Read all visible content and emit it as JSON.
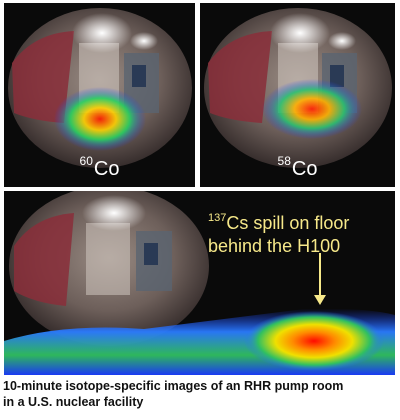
{
  "panels": [
    {
      "isotope_mass": "60",
      "isotope_symbol": "Co"
    },
    {
      "isotope_mass": "58",
      "isotope_symbol": "Co"
    }
  ],
  "annotation": {
    "mass": "137",
    "line1_rest": "Cs spill on floor",
    "line2": "behind the H100"
  },
  "caption": {
    "line1": "10-minute isotope-specific images of an RHR pump room",
    "line2": "in a U.S. nuclear facility"
  },
  "colors": {
    "background": "#0a0a0a",
    "annotation": "#f7e98a",
    "heat_hot": "#ff2a00",
    "heat_cold": "#1a3cff"
  }
}
